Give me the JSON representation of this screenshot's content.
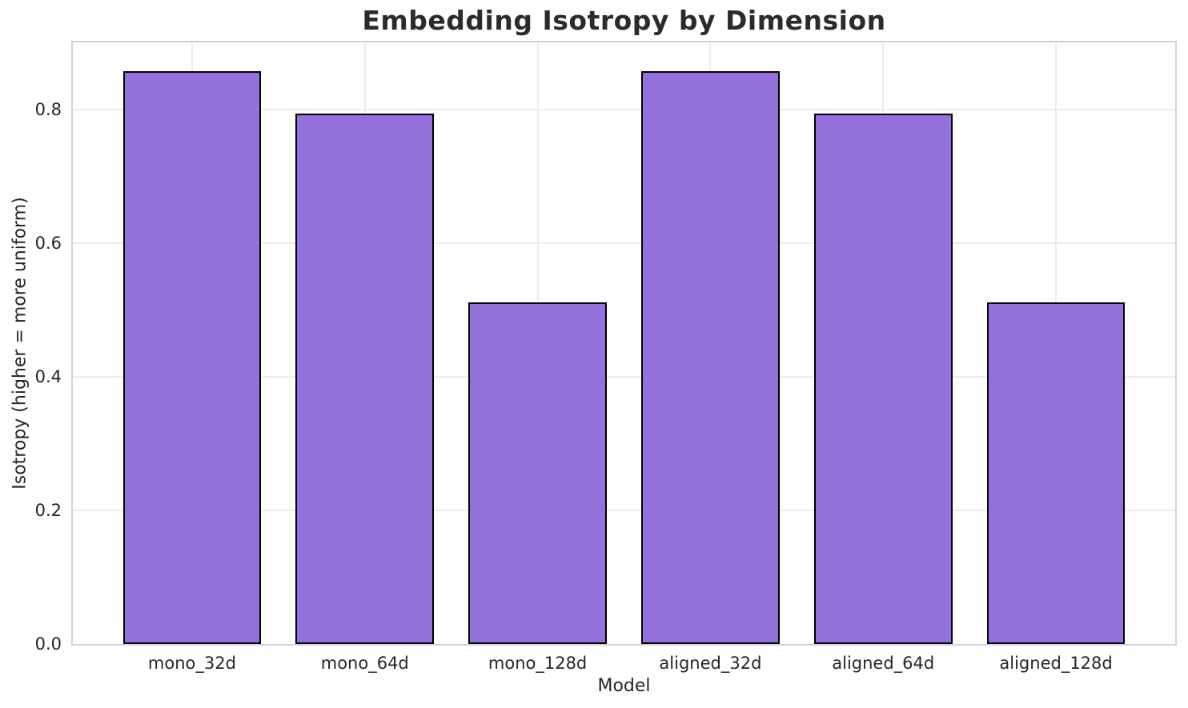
{
  "chart_data": {
    "type": "bar",
    "title": "Embedding Isotropy by Dimension",
    "xlabel": "Model",
    "ylabel": "Isotropy (higher = more uniform)",
    "categories": [
      "mono_32d",
      "mono_64d",
      "mono_128d",
      "aligned_32d",
      "aligned_64d",
      "aligned_128d"
    ],
    "values": [
      0.857,
      0.793,
      0.511,
      0.857,
      0.793,
      0.511
    ],
    "ylim": [
      0,
      0.9
    ],
    "ytick_labels": [
      "0.0",
      "0.2",
      "0.4",
      "0.6",
      "0.8"
    ],
    "ytick_values": [
      0.0,
      0.2,
      0.4,
      0.6,
      0.8
    ],
    "grid": true,
    "legend_position": "none",
    "colors": {
      "bar_fill": "#9370DB",
      "bar_edge": "#000000",
      "grid_line": "#ececec",
      "spine": "#d2d2d2",
      "tick_text": "#262626",
      "title_text": "#2b2b2b"
    }
  }
}
